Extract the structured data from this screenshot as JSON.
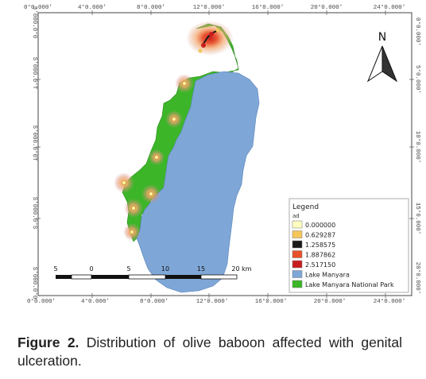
{
  "map": {
    "top_ticks": [
      "0°0.000'",
      "4°0.000'",
      "8°0.000'",
      "12°0.000'",
      "16°0.000'",
      "20°0.000'",
      "24°0.000'"
    ],
    "bottom_ticks": [
      "0°0.000'",
      "4°0.000'",
      "8°0.000'",
      "12°0.000'",
      "16°0.000'",
      "20°0.000'",
      "24°0.000'"
    ],
    "left_ticks": [
      "S'000.0°0",
      "S'000.0°T",
      "S'000.0°0T",
      "S'000.0°S",
      "S'000.0°0"
    ],
    "right_ticks": [
      "0°0.000'",
      "5°0.000'",
      "10°0.000'",
      "15°0.000'",
      "20°0.000'"
    ],
    "north_label": "N",
    "scale_bar": {
      "labels": [
        "5",
        "0",
        "5",
        "10",
        "15",
        "20 km"
      ]
    },
    "legend": {
      "title": "Legend",
      "subtitle": "ad",
      "items": [
        {
          "label": "0.000000",
          "color": "#ffffc0"
        },
        {
          "label": "0.629287",
          "color": "#f5c75a"
        },
        {
          "label": "1.258575",
          "color": "#1a1a1a"
        },
        {
          "label": "1.887862",
          "color": "#e8502a"
        },
        {
          "label": "2.517150",
          "color": "#c81e1e"
        },
        {
          "label": "Lake Manyara",
          "color": "#7ea6d6"
        },
        {
          "label": "Lake Manyara National Park",
          "color": "#3cb628"
        }
      ]
    },
    "colors": {
      "park": "#3cb628",
      "lake": "#7ea6d6",
      "frame": "#444444"
    }
  },
  "caption": {
    "label": "Figure 2.",
    "text": "Distribution of olive baboon affected with genital ulceration."
  }
}
